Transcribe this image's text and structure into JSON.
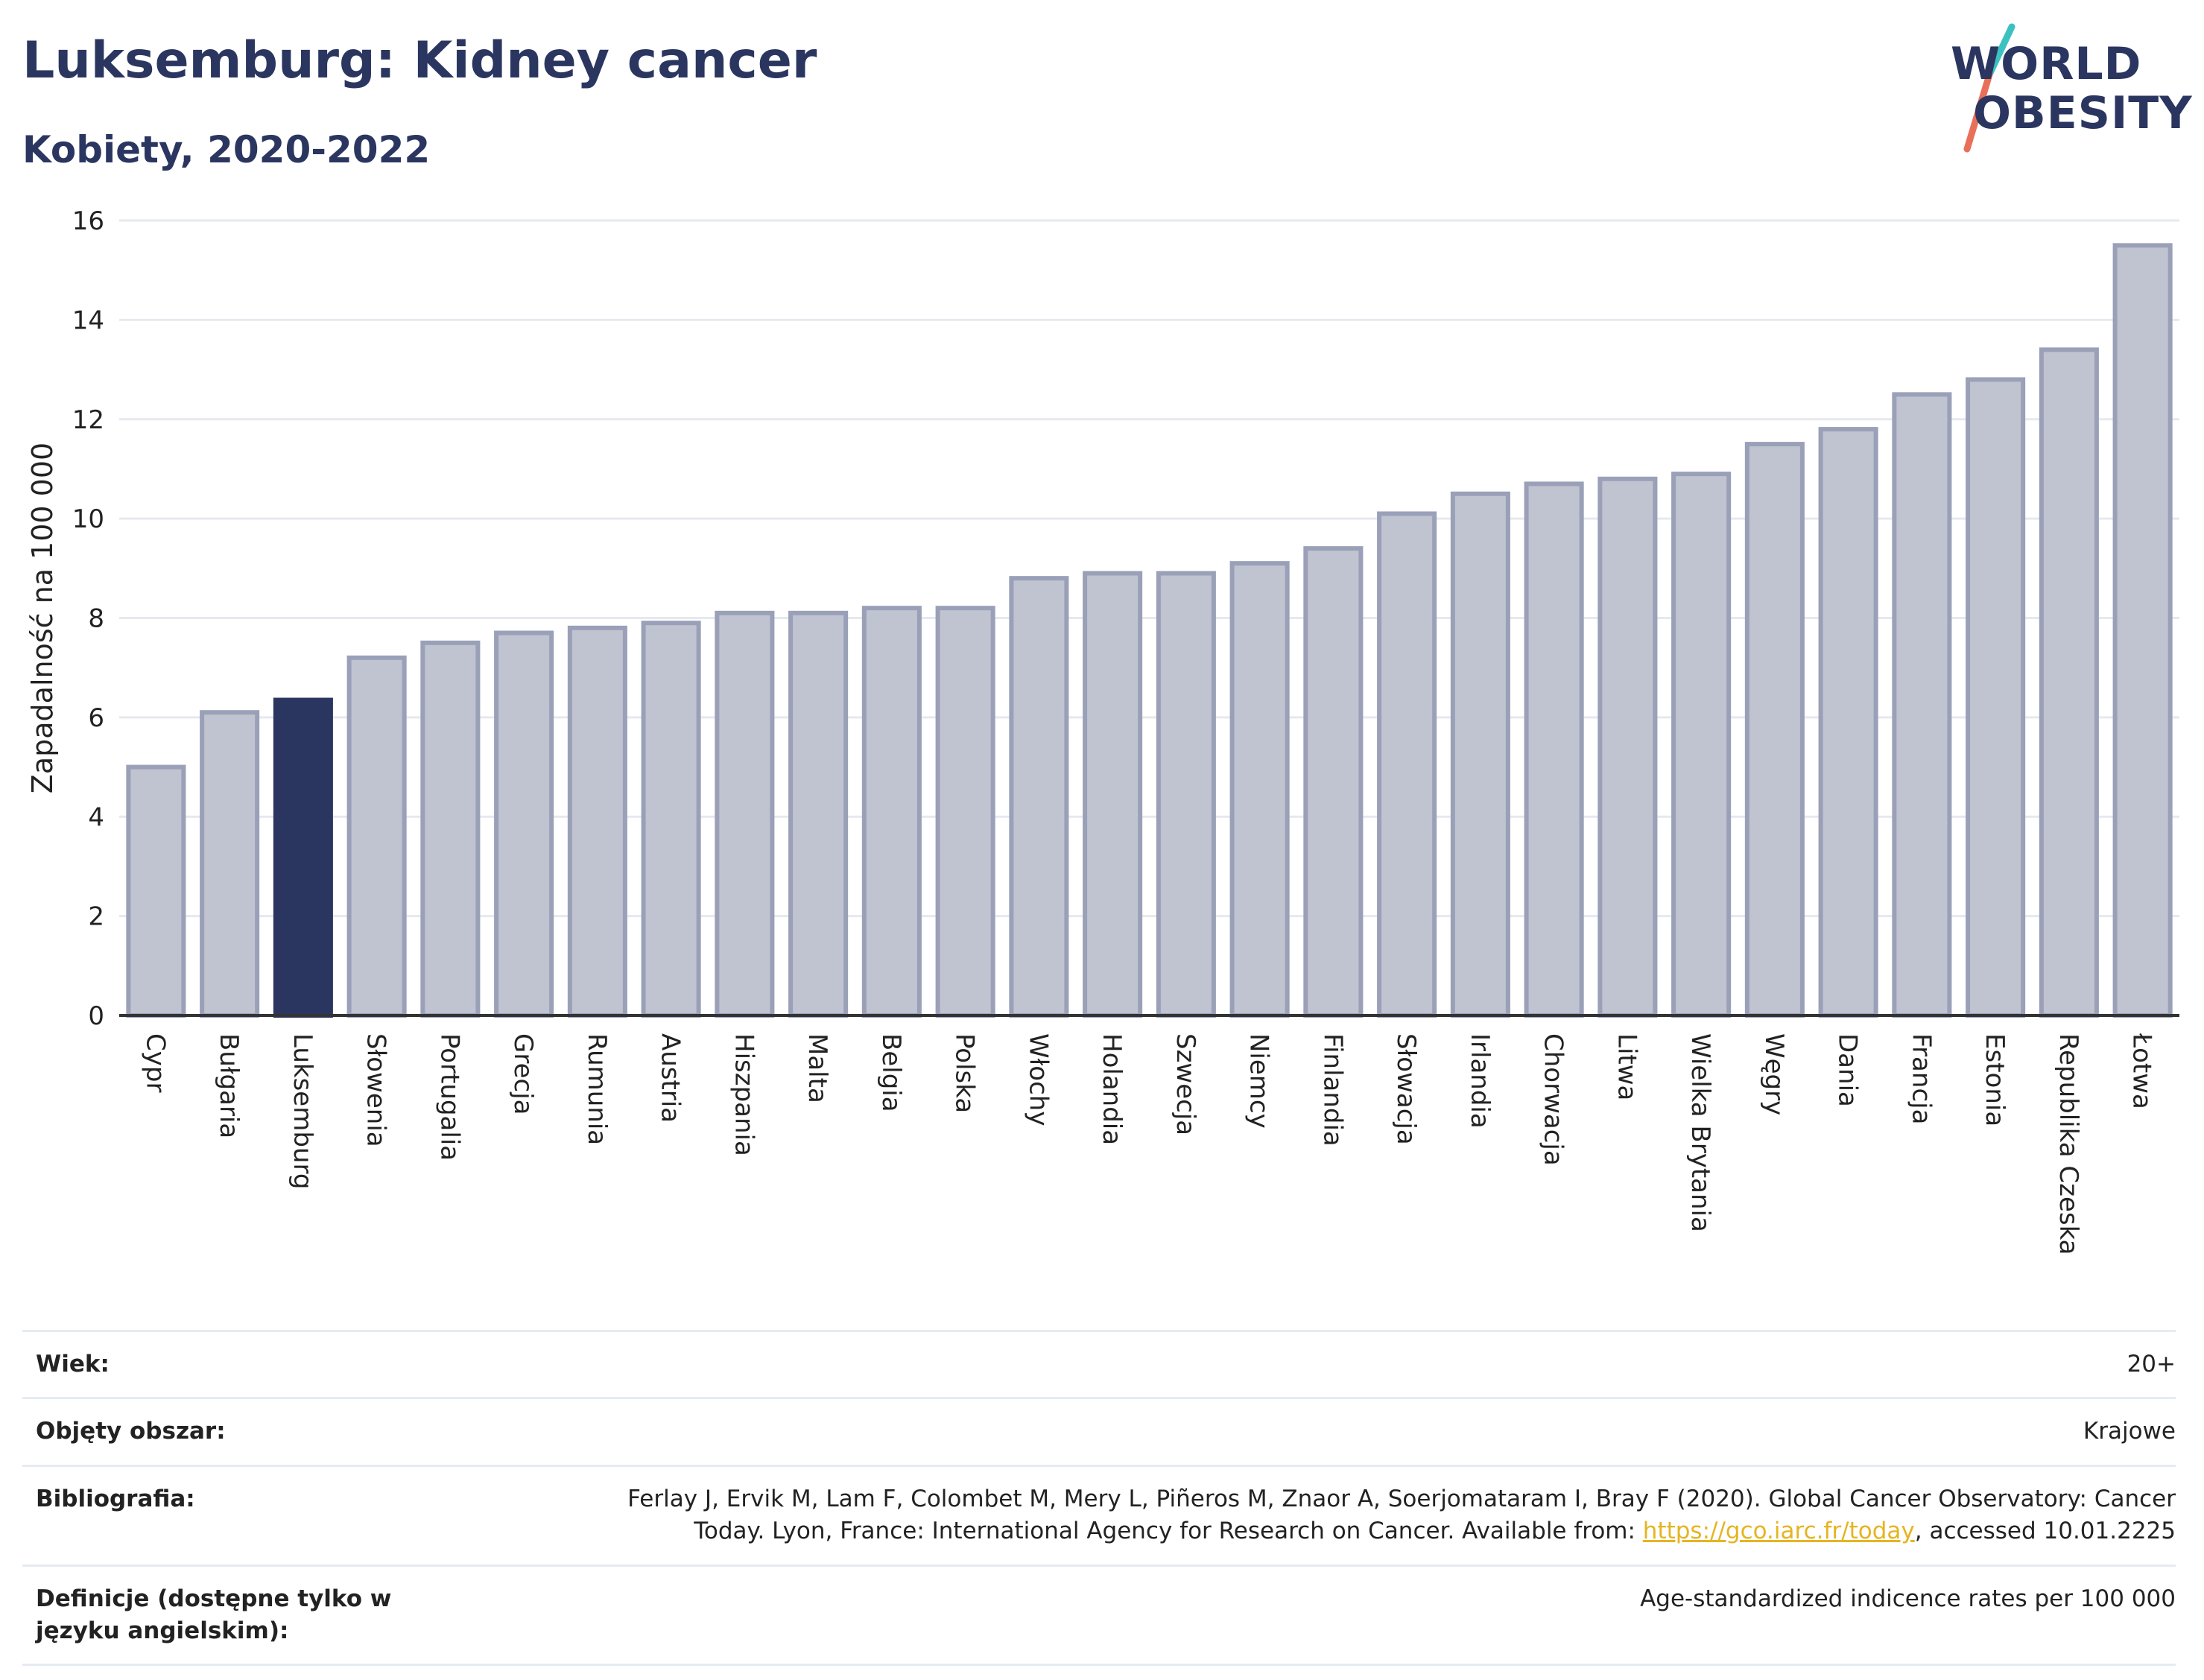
{
  "header": {
    "title": "Luksemburg: Kidney cancer",
    "subtitle": "Kobiety, 2020-2022"
  },
  "logo": {
    "line1": "WORLD",
    "line2": "OBESITY",
    "slash_colors": [
      "#3cc1c1",
      "#e8705a"
    ]
  },
  "colors": {
    "highlight": "#2b3660",
    "bar_fill": "#c0c3d0",
    "bar_stroke": "#9aa0b8",
    "grid": "#e6e9ef"
  },
  "chart_data": {
    "type": "bar",
    "ylabel": "Zapadalność na 100 000",
    "ylim": [
      0,
      16
    ],
    "yticks": [
      0,
      2,
      4,
      6,
      8,
      10,
      12,
      14,
      16
    ],
    "highlight": "Luksemburg",
    "categories": [
      "Cypr",
      "Bułgaria",
      "Luksemburg",
      "Słowenia",
      "Portugalia",
      "Grecja",
      "Rumunia",
      "Austria",
      "Hiszpania",
      "Malta",
      "Belgia",
      "Polska",
      "Włochy",
      "Holandia",
      "Szwecja",
      "Niemcy",
      "Finlandia",
      "Słowacja",
      "Irlandia",
      "Chorwacja",
      "Litwa",
      "Wielka Brytania",
      "Węgry",
      "Dania",
      "Francja",
      "Estonia",
      "Republika Czeska",
      "Łotwa"
    ],
    "values": [
      5.0,
      6.1,
      6.35,
      7.2,
      7.5,
      7.7,
      7.8,
      7.9,
      8.1,
      8.1,
      8.2,
      8.2,
      8.8,
      8.9,
      8.9,
      9.1,
      9.4,
      10.1,
      10.5,
      10.7,
      10.8,
      10.9,
      11.5,
      11.8,
      12.5,
      12.8,
      13.4,
      15.5
    ]
  },
  "info": [
    {
      "label": "Wiek:",
      "value": "20+"
    },
    {
      "label": "Objęty obszar:",
      "value": "Krajowe"
    },
    {
      "label": "Bibliografia:",
      "value": "Ferlay J, Ervik M, Lam F, Colombet M, Mery L, Piñeros M, Znaor A, Soerjomataram I, Bray F (2020). Global Cancer Observatory: Cancer Today. Lyon, France: International Agency for Research on Cancer. Available from: ",
      "link": "https://gco.iarc.fr/today",
      "suffix": ", accessed 10.01.2225"
    },
    {
      "label": "Definicje (dostępne tylko w języku angielskim):",
      "value": "Age-standardized indicence rates per 100 000"
    }
  ]
}
